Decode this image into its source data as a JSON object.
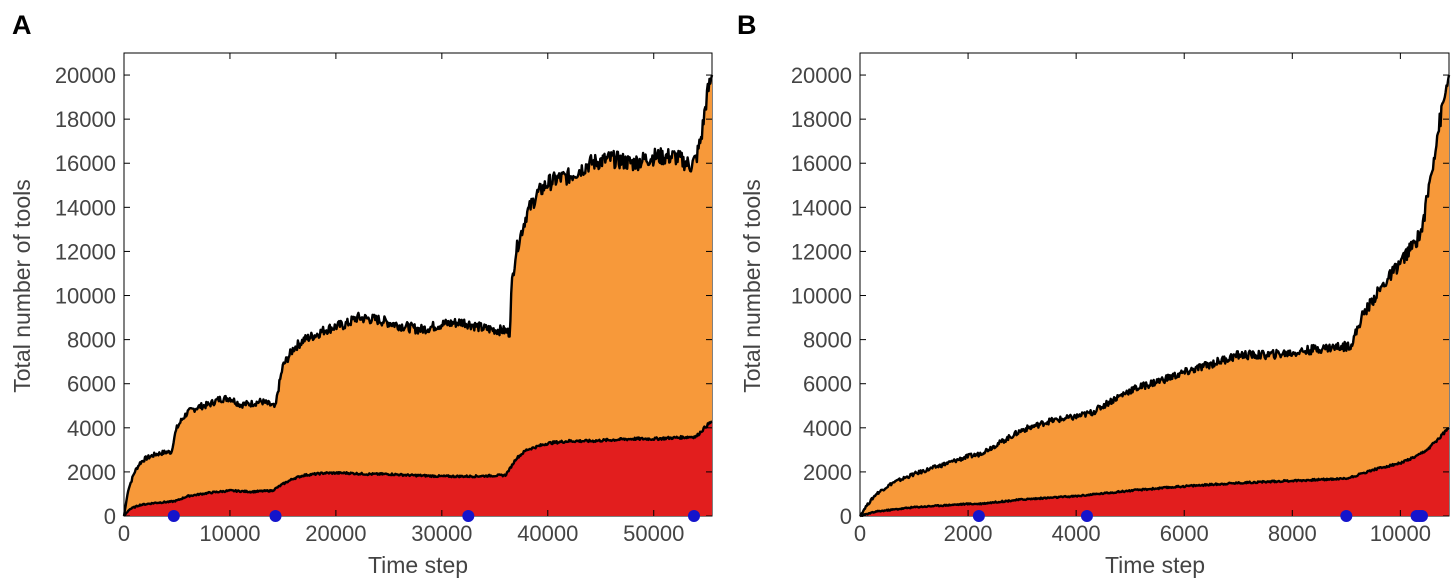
{
  "chart_data": [
    {
      "type": "area",
      "panel_label": "A",
      "xlabel": "Time step",
      "ylabel": "Total number of tools",
      "xlim": [
        0,
        55500
      ],
      "ylim": [
        0,
        21000
      ],
      "xticks": [
        0,
        10000,
        20000,
        30000,
        40000,
        50000
      ],
      "xtick_labels": [
        "0",
        "10000",
        "20000",
        "30000",
        "40000",
        "50000"
      ],
      "yticks": [
        0,
        2000,
        4000,
        6000,
        8000,
        10000,
        12000,
        14000,
        16000,
        18000,
        20000
      ],
      "ytick_labels": [
        "0",
        "2000",
        "4000",
        "6000",
        "8000",
        "10000",
        "12000",
        "14000",
        "16000",
        "18000",
        "20000"
      ],
      "colors": {
        "total_fill": "#F7993A",
        "lower_fill": "#E21E1E",
        "line": "#000000",
        "markers": "#1414CC"
      },
      "series": [
        {
          "role": "total",
          "x": [
            0,
            400,
            1000,
            1500,
            2000,
            3000,
            4000,
            4500,
            4700,
            5000,
            5500,
            6000,
            7000,
            8000,
            9000,
            10000,
            11000,
            12000,
            13000,
            14000,
            14300,
            14500,
            15000,
            16000,
            17000,
            18000,
            19000,
            20000,
            21000,
            22000,
            24000,
            26000,
            28000,
            30000,
            32000,
            34000,
            36000,
            36400,
            36600,
            37000,
            38000,
            39000,
            40000,
            41000,
            42000,
            43000,
            44000,
            46000,
            48000,
            50000,
            52000,
            53500,
            54000,
            54500,
            55000,
            55500
          ],
          "y": [
            0,
            1200,
            2000,
            2400,
            2600,
            2800,
            2900,
            2900,
            3500,
            4000,
            4400,
            4700,
            4950,
            5050,
            5300,
            5350,
            5050,
            5100,
            5200,
            5000,
            4900,
            5600,
            6800,
            7600,
            8000,
            8200,
            8450,
            8600,
            8700,
            9000,
            8900,
            8650,
            8450,
            8700,
            8800,
            8500,
            8400,
            8300,
            10500,
            12000,
            13700,
            14600,
            15100,
            15300,
            15400,
            15700,
            16000,
            16200,
            16000,
            16300,
            16300,
            15900,
            16200,
            17200,
            19000,
            20000
          ]
        },
        {
          "role": "lower",
          "x": [
            0,
            500,
            1500,
            3000,
            4500,
            5000,
            6000,
            8000,
            10000,
            12000,
            14000,
            14500,
            15000,
            16000,
            17000,
            19000,
            21000,
            23000,
            25000,
            27000,
            30000,
            33000,
            36000,
            36500,
            37000,
            38000,
            40000,
            42000,
            44000,
            46000,
            48000,
            50000,
            52000,
            54000,
            55000,
            55500
          ],
          "y": [
            0,
            300,
            500,
            600,
            650,
            700,
            900,
            1050,
            1150,
            1100,
            1150,
            1300,
            1450,
            1700,
            1850,
            1950,
            1950,
            1900,
            1900,
            1850,
            1800,
            1800,
            1850,
            2200,
            2600,
            3000,
            3300,
            3400,
            3400,
            3450,
            3500,
            3500,
            3550,
            3600,
            4100,
            4300
          ]
        }
      ],
      "markers_x": [
        4700,
        14300,
        32500,
        53800
      ]
    },
    {
      "type": "area",
      "panel_label": "B",
      "xlabel": "Time step",
      "ylabel": "Total number of tools",
      "xlim": [
        0,
        10900
      ],
      "ylim": [
        0,
        21000
      ],
      "xticks": [
        0,
        2000,
        4000,
        6000,
        8000,
        10000
      ],
      "xtick_labels": [
        "0",
        "2000",
        "4000",
        "6000",
        "8000",
        "10000"
      ],
      "yticks": [
        0,
        2000,
        4000,
        6000,
        8000,
        10000,
        12000,
        14000,
        16000,
        18000,
        20000
      ],
      "ytick_labels": [
        "0",
        "2000",
        "4000",
        "6000",
        "8000",
        "10000",
        "12000",
        "14000",
        "16000",
        "18000",
        "20000"
      ],
      "colors": {
        "total_fill": "#F7993A",
        "lower_fill": "#E21E1E",
        "line": "#000000",
        "markers": "#1414CC"
      },
      "series": [
        {
          "role": "total",
          "x": [
            0,
            100,
            300,
            600,
            1000,
            1500,
            2000,
            2200,
            2500,
            3000,
            3500,
            4000,
            4300,
            4700,
            5000,
            5500,
            6000,
            6500,
            7000,
            7500,
            8000,
            8500,
            9000,
            9100,
            9300,
            9600,
            10000,
            10300,
            10400,
            10500,
            10700,
            10900
          ],
          "y": [
            0,
            400,
            1000,
            1500,
            1900,
            2300,
            2700,
            2800,
            3200,
            3900,
            4300,
            4500,
            4700,
            5300,
            5700,
            6100,
            6500,
            6900,
            7300,
            7300,
            7400,
            7600,
            7700,
            7800,
            9100,
            10200,
            11500,
            12500,
            13000,
            14500,
            17500,
            20000
          ]
        },
        {
          "role": "lower",
          "x": [
            0,
            300,
            1000,
            2000,
            2200,
            3000,
            4000,
            5000,
            6000,
            7000,
            8000,
            9000,
            9200,
            9500,
            10000,
            10300,
            10500,
            10900
          ],
          "y": [
            0,
            200,
            400,
            550,
            550,
            750,
            900,
            1150,
            1350,
            1500,
            1600,
            1700,
            1850,
            2100,
            2400,
            2700,
            3000,
            4000
          ]
        }
      ],
      "markers_x": [
        2200,
        4200,
        9000,
        10300,
        10350,
        10400
      ]
    }
  ]
}
